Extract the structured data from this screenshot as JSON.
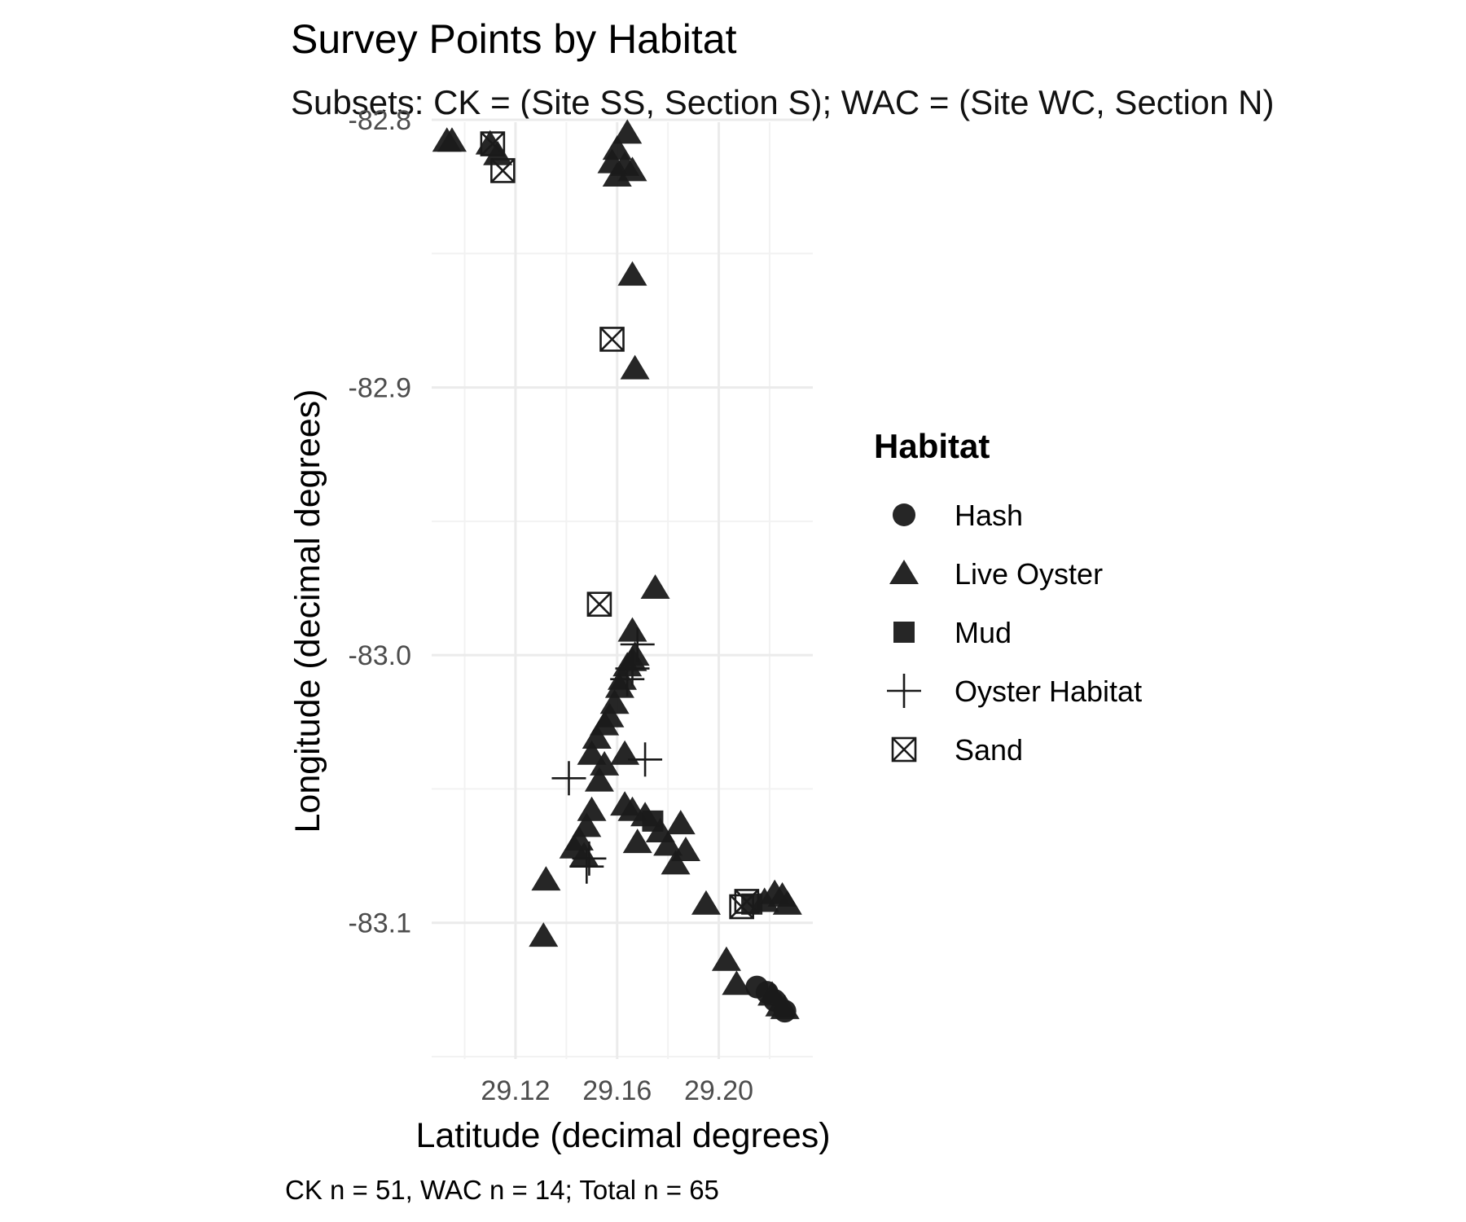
{
  "chart_data": {
    "type": "scatter",
    "title": "Survey Points by Habitat",
    "subtitle": "Subsets: CK = (Site SS, Section S); WAC = (Site WC, Section N)",
    "xlabel": "Latitude (decimal degrees)",
    "ylabel": "Longitude (decimal degrees)",
    "caption": "CK n = 51, WAC n = 14; Total n = 65",
    "xlim": [
      29.087,
      29.237
    ],
    "ylim": [
      -83.15,
      -82.8
    ],
    "x_ticks": [
      29.12,
      29.16,
      29.2
    ],
    "x_tick_labels": [
      "29.12",
      "29.16",
      "29.20"
    ],
    "y_ticks": [
      -82.8,
      -82.9,
      -83.0,
      -83.1
    ],
    "y_tick_labels": [
      "-82.8",
      "-82.9",
      "-83.0",
      "-83.1"
    ],
    "grid": true,
    "legend": {
      "title": "Habitat",
      "position": "right",
      "entries": [
        {
          "name": "Hash",
          "shape": "circle"
        },
        {
          "name": "Live Oyster",
          "shape": "triangle"
        },
        {
          "name": "Mud",
          "shape": "square"
        },
        {
          "name": "Oyster Habitat",
          "shape": "plus"
        },
        {
          "name": "Sand",
          "shape": "square-x"
        }
      ]
    },
    "marker_color": "#1a1a1a",
    "series": [
      {
        "name": "Hash",
        "points": [
          [
            29.215,
            -83.124
          ],
          [
            29.219,
            -83.126
          ],
          [
            29.222,
            -83.129
          ],
          [
            29.226,
            -83.133
          ]
        ]
      },
      {
        "name": "Live Oyster",
        "points": [
          [
            29.093,
            -82.808
          ],
          [
            29.095,
            -82.808
          ],
          [
            29.11,
            -82.809
          ],
          [
            29.113,
            -82.813
          ],
          [
            29.16,
            -82.811
          ],
          [
            29.164,
            -82.805
          ],
          [
            29.158,
            -82.816
          ],
          [
            29.163,
            -82.817
          ],
          [
            29.166,
            -82.819
          ],
          [
            29.16,
            -82.821
          ],
          [
            29.166,
            -82.858
          ],
          [
            29.167,
            -82.893
          ],
          [
            29.175,
            -82.975
          ],
          [
            29.166,
            -82.991
          ],
          [
            29.167,
            -83.0
          ],
          [
            29.166,
            -83.002
          ],
          [
            29.164,
            -83.004
          ],
          [
            29.162,
            -83.009
          ],
          [
            29.161,
            -83.012
          ],
          [
            29.159,
            -83.018
          ],
          [
            29.157,
            -83.023
          ],
          [
            29.155,
            -83.026
          ],
          [
            29.152,
            -83.031
          ],
          [
            29.15,
            -83.037
          ],
          [
            29.155,
            -83.041
          ],
          [
            29.153,
            -83.047
          ],
          [
            29.163,
            -83.037
          ],
          [
            29.163,
            -83.056
          ],
          [
            29.166,
            -83.058
          ],
          [
            29.15,
            -83.058
          ],
          [
            29.148,
            -83.064
          ],
          [
            29.145,
            -83.069
          ],
          [
            29.143,
            -83.072
          ],
          [
            29.147,
            -83.075
          ],
          [
            29.132,
            -83.084
          ],
          [
            29.131,
            -83.105
          ],
          [
            29.168,
            -83.07
          ],
          [
            29.171,
            -83.06
          ],
          [
            29.177,
            -83.066
          ],
          [
            29.18,
            -83.071
          ],
          [
            29.185,
            -83.063
          ],
          [
            29.187,
            -83.073
          ],
          [
            29.183,
            -83.078
          ],
          [
            29.195,
            -83.093
          ],
          [
            29.203,
            -83.114
          ],
          [
            29.207,
            -83.123
          ],
          [
            29.221,
            -83.127
          ],
          [
            29.224,
            -83.131
          ],
          [
            29.226,
            -83.132
          ],
          [
            29.218,
            -83.092
          ],
          [
            29.222,
            -83.089
          ],
          [
            29.225,
            -83.09
          ],
          [
            29.227,
            -83.093
          ]
        ]
      },
      {
        "name": "Mud",
        "points": [
          [
            29.174,
            -83.062
          ],
          [
            29.213,
            -83.093
          ]
        ]
      },
      {
        "name": "Oyster Habitat",
        "points": [
          [
            29.168,
            -82.996
          ],
          [
            29.166,
            -83.005
          ],
          [
            29.164,
            -83.009
          ],
          [
            29.171,
            -83.039
          ],
          [
            29.141,
            -83.046
          ],
          [
            29.149,
            -83.076
          ],
          [
            29.148,
            -83.079
          ]
        ]
      },
      {
        "name": "Sand",
        "points": [
          [
            29.111,
            -82.809
          ],
          [
            29.115,
            -82.819
          ],
          [
            29.158,
            -82.882
          ],
          [
            29.153,
            -82.981
          ],
          [
            29.209,
            -83.094
          ],
          [
            29.211,
            -83.092
          ]
        ]
      }
    ]
  }
}
